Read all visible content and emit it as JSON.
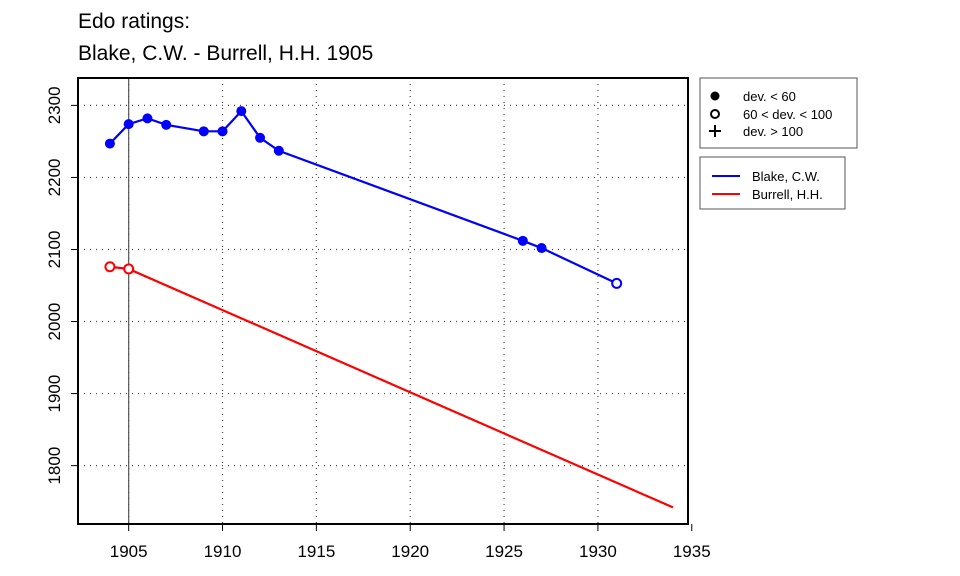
{
  "chart_data": {
    "type": "line",
    "title": "Edo ratings:",
    "subtitle": "Blake, C.W. - Burrell, H.H. 1905",
    "xlabel": "",
    "ylabel": "",
    "xlim": [
      1902.3,
      1934.8
    ],
    "ylim": [
      1719,
      2338
    ],
    "x_ticks": [
      1905,
      1910,
      1915,
      1920,
      1925,
      1930,
      1935
    ],
    "y_ticks": [
      1800,
      1900,
      2000,
      2100,
      2200,
      2300
    ],
    "grid": true,
    "reference_year": 1905,
    "series": [
      {
        "name": "Blake, C.W.",
        "color": "#0000ff",
        "points": [
          {
            "x": 1904,
            "y": 2247,
            "marker": "filled"
          },
          {
            "x": 1905,
            "y": 2274,
            "marker": "filled"
          },
          {
            "x": 1906,
            "y": 2282,
            "marker": "filled"
          },
          {
            "x": 1907,
            "y": 2273,
            "marker": "filled"
          },
          {
            "x": 1909,
            "y": 2264,
            "marker": "filled"
          },
          {
            "x": 1910,
            "y": 2264,
            "marker": "filled"
          },
          {
            "x": 1911,
            "y": 2292,
            "marker": "filled"
          },
          {
            "x": 1912,
            "y": 2255,
            "marker": "filled"
          },
          {
            "x": 1913,
            "y": 2237,
            "marker": "filled"
          },
          {
            "x": 1926,
            "y": 2112,
            "marker": "filled"
          },
          {
            "x": 1927,
            "y": 2102,
            "marker": "filled"
          },
          {
            "x": 1931,
            "y": 2053,
            "marker": "open"
          }
        ]
      },
      {
        "name": "Burrell, H.H.",
        "color": "#ff0000",
        "points": [
          {
            "x": 1904,
            "y": 2076,
            "marker": "open"
          },
          {
            "x": 1905,
            "y": 2073,
            "marker": "open"
          },
          {
            "x": 1934,
            "y": 1742,
            "marker": "none"
          }
        ]
      }
    ],
    "marker_legend": [
      {
        "symbol": "filled",
        "label": "dev. < 60"
      },
      {
        "symbol": "open",
        "label": "60 < dev. < 100"
      },
      {
        "symbol": "plus",
        "label": "dev. > 100"
      }
    ],
    "legend_placement": "right"
  }
}
